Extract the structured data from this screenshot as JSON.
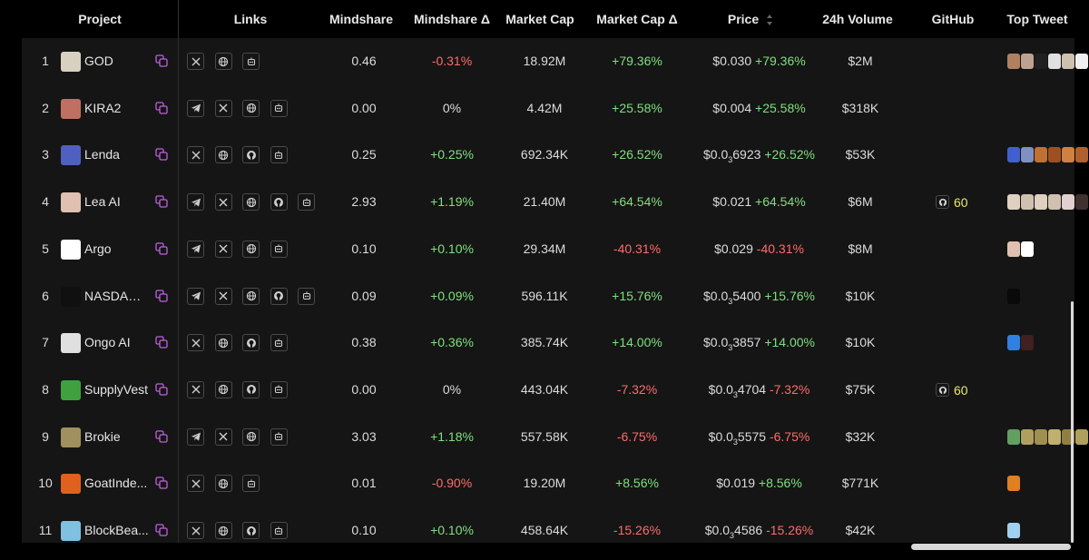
{
  "headers": {
    "project": "Project",
    "links": "Links",
    "mindshare": "Mindshare",
    "mindshare_delta": "Mindshare Δ",
    "market_cap": "Market Cap",
    "market_cap_delta": "Market Cap Δ",
    "price": "Price",
    "volume": "24h Volume",
    "github": "GitHub",
    "top_tweet": "Top Tweet"
  },
  "colors": {
    "positive": "#7ee07e",
    "negative": "#ff6b6b",
    "accent": "#c060e0",
    "github_score": "#e8e86a"
  },
  "rows": [
    {
      "rank": "1",
      "name": "GOD",
      "avatar_color": "#d8d0c0",
      "links": [
        "x",
        "web",
        "bot"
      ],
      "mindshare": "0.46",
      "mindshare_delta": "-0.31%",
      "market_cap": "18.92M",
      "market_cap_delta": "+79.36%",
      "price": "$0.030",
      "price_sub": "",
      "price_tail": "",
      "price_delta": "+79.36%",
      "volume": "$2M",
      "github": "",
      "tweets": [
        "#b08060",
        "#c0a090",
        "#202020",
        "#e0e0e0",
        "#d0c0b0",
        "#f0f0f0"
      ]
    },
    {
      "rank": "2",
      "name": "KIRA2",
      "avatar_color": "#c07060",
      "links": [
        "telegram",
        "x",
        "web",
        "bot"
      ],
      "mindshare": "0.00",
      "mindshare_delta": "0%",
      "market_cap": "4.42M",
      "market_cap_delta": "+25.58%",
      "price": "$0.004",
      "price_sub": "",
      "price_tail": "",
      "price_delta": "+25.58%",
      "volume": "$318K",
      "github": "",
      "tweets": []
    },
    {
      "rank": "3",
      "name": "Lenda",
      "avatar_color": "#5060c0",
      "links": [
        "x",
        "web",
        "github",
        "bot"
      ],
      "mindshare": "0.25",
      "mindshare_delta": "+0.25%",
      "market_cap": "692.34K",
      "market_cap_delta": "+26.52%",
      "price": "$0.0",
      "price_sub": "3",
      "price_tail": "6923",
      "price_delta": "+26.52%",
      "volume": "$53K",
      "github": "",
      "tweets": [
        "#4060d0",
        "#8090c0",
        "#c07030",
        "#a05020",
        "#d08040",
        "#b06030"
      ]
    },
    {
      "rank": "4",
      "name": "Lea AI",
      "avatar_color": "#e0c0b0",
      "links": [
        "telegram",
        "x",
        "web",
        "github",
        "bot"
      ],
      "mindshare": "2.93",
      "mindshare_delta": "+1.19%",
      "market_cap": "21.40M",
      "market_cap_delta": "+64.54%",
      "price": "$0.021",
      "price_sub": "",
      "price_tail": "",
      "price_delta": "+64.54%",
      "volume": "$6M",
      "github": "60",
      "tweets": [
        "#e0d0c0",
        "#d0c0b0",
        "#e0d0c0",
        "#d0c0b0",
        "#e0d0d0",
        "#403030"
      ]
    },
    {
      "rank": "5",
      "name": "Argo",
      "avatar_color": "#ffffff",
      "links": [
        "telegram",
        "x",
        "web",
        "bot"
      ],
      "mindshare": "0.10",
      "mindshare_delta": "+0.10%",
      "market_cap": "29.34M",
      "market_cap_delta": "-40.31%",
      "price": "$0.029",
      "price_sub": "",
      "price_tail": "",
      "price_delta": "-40.31%",
      "volume": "$8M",
      "github": "",
      "tweets": [
        "#e0c0b0",
        "#ffffff"
      ]
    },
    {
      "rank": "6",
      "name": "NASDAO Ai",
      "avatar_color": "#101010",
      "links": [
        "telegram",
        "x",
        "web",
        "github",
        "bot"
      ],
      "mindshare": "0.09",
      "mindshare_delta": "+0.09%",
      "market_cap": "596.11K",
      "market_cap_delta": "+15.76%",
      "price": "$0.0",
      "price_sub": "3",
      "price_tail": "5400",
      "price_delta": "+15.76%",
      "volume": "$10K",
      "github": "",
      "tweets": [
        "#0a0a0a"
      ]
    },
    {
      "rank": "7",
      "name": "Ongo AI",
      "avatar_color": "#e0e0e0",
      "links": [
        "x",
        "web",
        "github",
        "bot"
      ],
      "mindshare": "0.38",
      "mindshare_delta": "+0.36%",
      "market_cap": "385.74K",
      "market_cap_delta": "+14.00%",
      "price": "$0.0",
      "price_sub": "3",
      "price_tail": "3857",
      "price_delta": "+14.00%",
      "volume": "$10K",
      "github": "",
      "tweets": [
        "#3080e0",
        "#402020"
      ]
    },
    {
      "rank": "8",
      "name": "SupplyVest",
      "avatar_color": "#40a040",
      "links": [
        "x",
        "web",
        "github",
        "bot"
      ],
      "mindshare": "0.00",
      "mindshare_delta": "0%",
      "market_cap": "443.04K",
      "market_cap_delta": "-7.32%",
      "price": "$0.0",
      "price_sub": "3",
      "price_tail": "4704",
      "price_delta": "-7.32%",
      "volume": "$75K",
      "github": "60",
      "tweets": []
    },
    {
      "rank": "9",
      "name": "Brokie",
      "avatar_color": "#a09060",
      "links": [
        "telegram",
        "x",
        "web",
        "bot"
      ],
      "mindshare": "3.03",
      "mindshare_delta": "+1.18%",
      "market_cap": "557.58K",
      "market_cap_delta": "-6.75%",
      "price": "$0.0",
      "price_sub": "3",
      "price_tail": "5575",
      "price_delta": "-6.75%",
      "volume": "$32K",
      "github": "",
      "tweets": [
        "#60a060",
        "#b0a060",
        "#a09050",
        "#c0b070",
        "#908040",
        "#b0a060"
      ]
    },
    {
      "rank": "10",
      "name": "GoatInde...",
      "avatar_color": "#e06020",
      "links": [
        "x",
        "web",
        "bot"
      ],
      "mindshare": "0.01",
      "mindshare_delta": "-0.90%",
      "market_cap": "19.20M",
      "market_cap_delta": "+8.56%",
      "price": "$0.019",
      "price_sub": "",
      "price_tail": "",
      "price_delta": "+8.56%",
      "volume": "$771K",
      "github": "",
      "tweets": [
        "#e08020"
      ]
    },
    {
      "rank": "11",
      "name": "BlockBea...",
      "avatar_color": "#80c0e0",
      "links": [
        "x",
        "web",
        "github",
        "bot"
      ],
      "mindshare": "0.10",
      "mindshare_delta": "+0.10%",
      "market_cap": "458.64K",
      "market_cap_delta": "-15.26%",
      "price": "$0.0",
      "price_sub": "3",
      "price_tail": "4586",
      "price_delta": "-15.26%",
      "volume": "$42K",
      "github": "",
      "tweets": [
        "#a0d0f0"
      ]
    }
  ]
}
